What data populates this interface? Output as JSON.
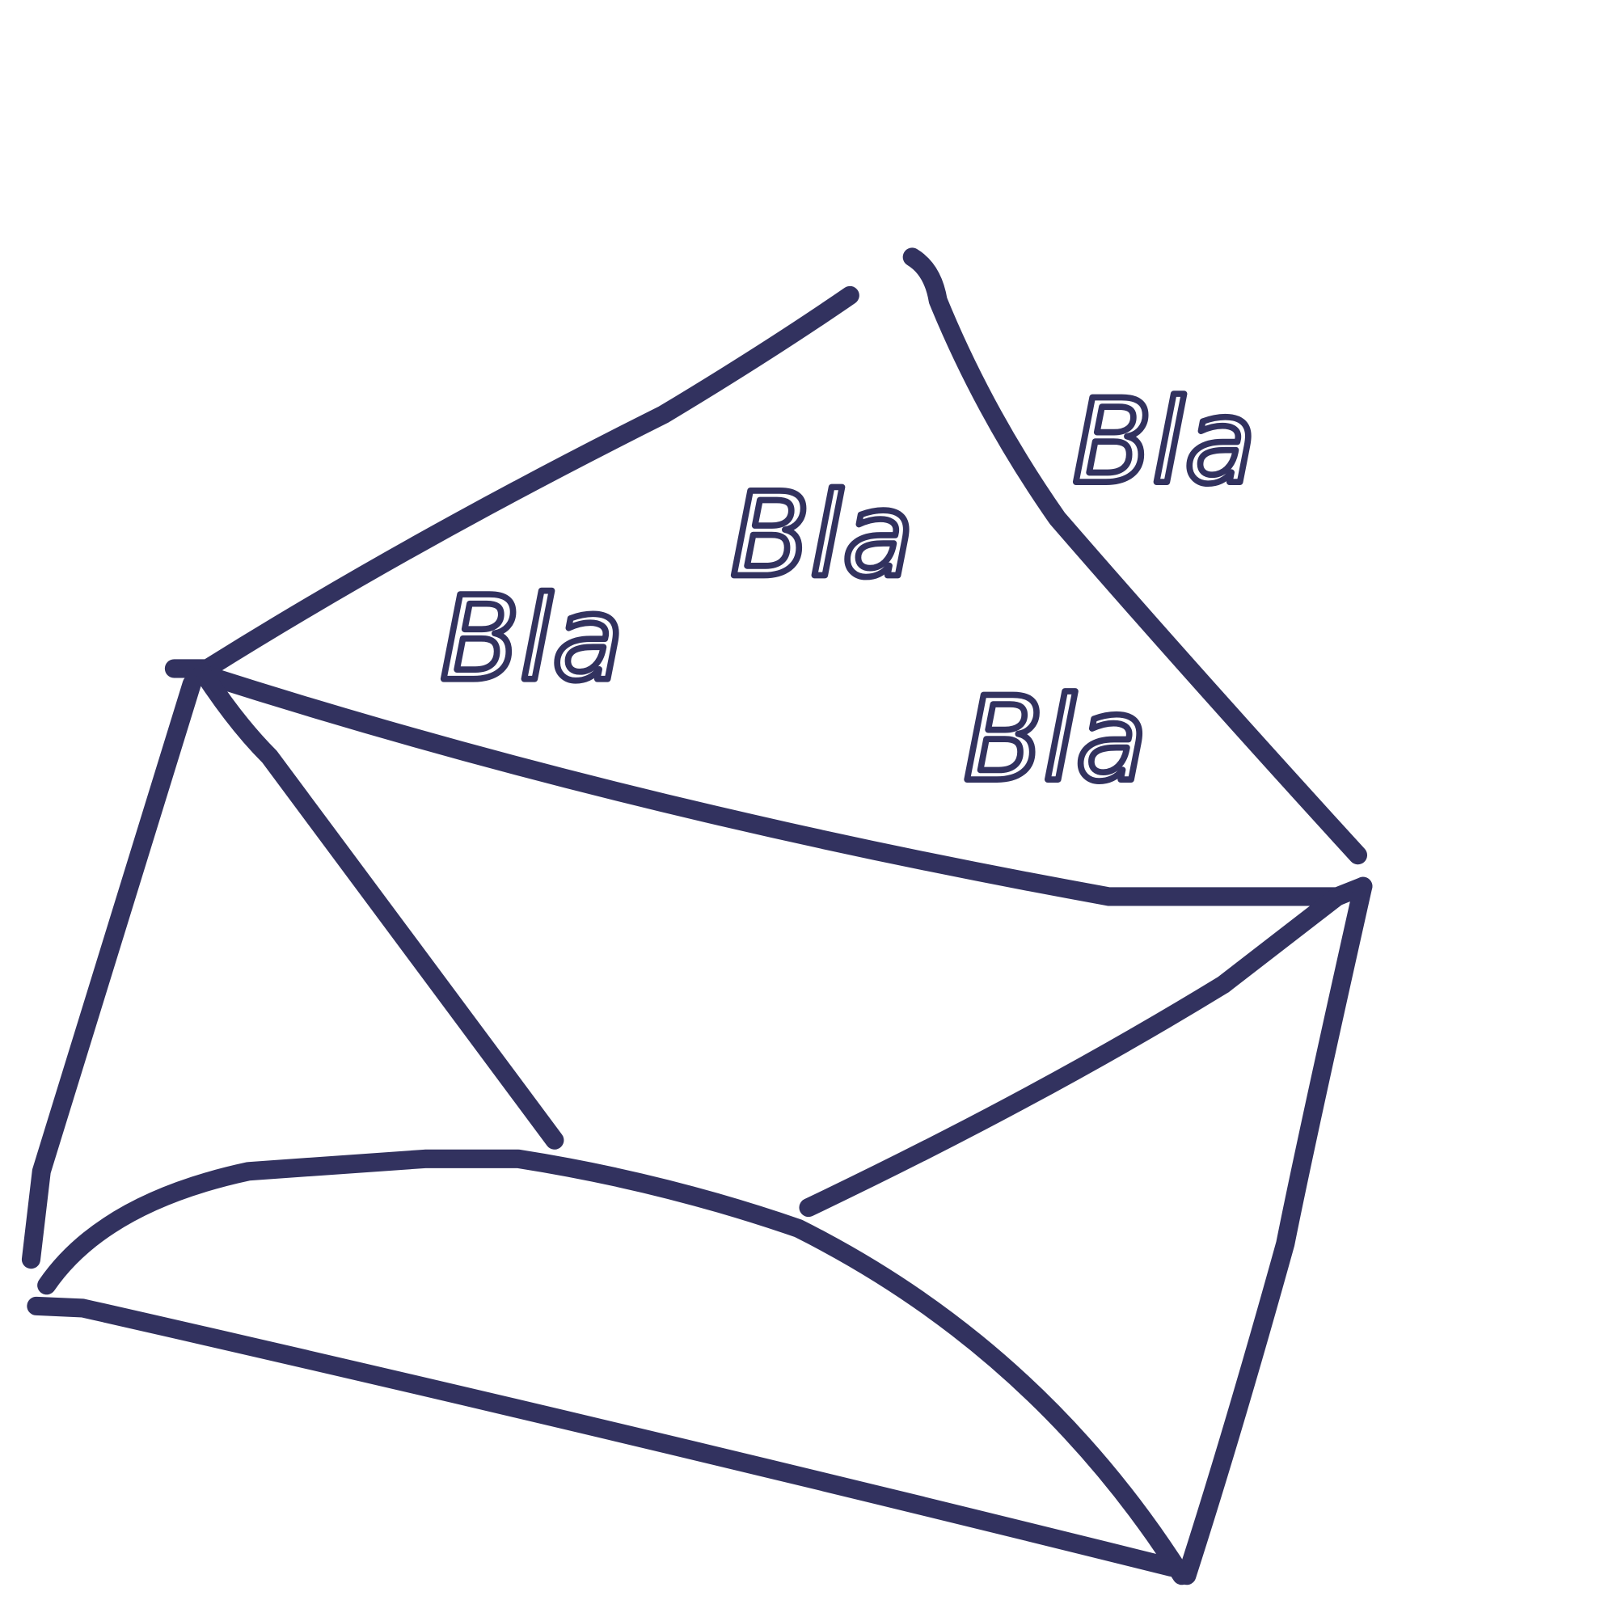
{
  "drawing": {
    "labels": [
      "Bla",
      "Bla",
      "Bla",
      "Bla"
    ]
  }
}
